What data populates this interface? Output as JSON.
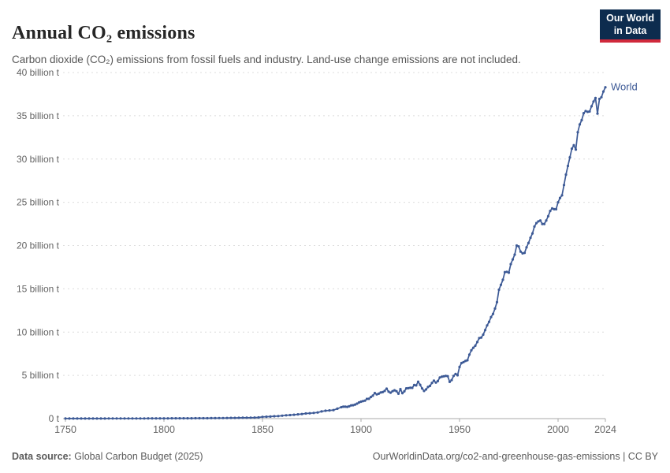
{
  "header": {
    "title": "Annual CO₂ emissions",
    "subtitle": "Carbon dioxide (CO₂) emissions from fossil fuels and industry. Land-use change emissions are not included.",
    "logo": {
      "line1": "Our World",
      "line2": "in Data"
    }
  },
  "colors": {
    "series_blue": "#3d5a96",
    "grid": "#dcdcdc",
    "axis": "#a8a8a8",
    "tick_text": "#636363",
    "logo_bg": "#0d2c4e",
    "logo_accent": "#d0293c",
    "title_text": "#262626",
    "subtitle_text": "#565656",
    "footer_text": "#5b5b5b"
  },
  "footer": {
    "data_source_label": "Data source:",
    "data_source_value": " Global Carbon Budget (2025)",
    "url": "OurWorldinData.org/co2-and-greenhouse-gas-emissions",
    "separator": " | ",
    "license": "CC BY"
  },
  "chart_data": {
    "type": "line",
    "title": "Annual CO₂ emissions",
    "xlabel": "",
    "ylabel": "",
    "grid": "dashed-horizontal",
    "legend_position": "end-of-line-label",
    "x_axis": {
      "range": [
        1750,
        2024
      ],
      "ticks": [
        1750,
        1800,
        1850,
        1900,
        1950,
        2000,
        2024
      ],
      "tick_labels": [
        "1750",
        "1800",
        "1850",
        "1900",
        "1950",
        "2000",
        "2024"
      ]
    },
    "y_axis": {
      "range": [
        0,
        40
      ],
      "unit": "billion tonnes",
      "ticks": [
        0,
        5,
        10,
        15,
        20,
        25,
        30,
        35,
        40
      ],
      "tick_labels": [
        "0 t",
        "5 billion t",
        "10 billion t",
        "15 billion t",
        "20 billion t",
        "25 billion t",
        "30 billion t",
        "35 billion t",
        "40 billion t"
      ]
    },
    "series": [
      {
        "name": "World",
        "color": "#3d5a96",
        "points": [
          [
            1750,
            0.009
          ],
          [
            1752,
            0.009
          ],
          [
            1754,
            0.01
          ],
          [
            1756,
            0.01
          ],
          [
            1758,
            0.01
          ],
          [
            1760,
            0.011
          ],
          [
            1762,
            0.011
          ],
          [
            1764,
            0.012
          ],
          [
            1766,
            0.012
          ],
          [
            1768,
            0.013
          ],
          [
            1770,
            0.013
          ],
          [
            1772,
            0.014
          ],
          [
            1774,
            0.015
          ],
          [
            1776,
            0.015
          ],
          [
            1778,
            0.016
          ],
          [
            1780,
            0.017
          ],
          [
            1782,
            0.018
          ],
          [
            1784,
            0.019
          ],
          [
            1786,
            0.02
          ],
          [
            1788,
            0.021
          ],
          [
            1790,
            0.022
          ],
          [
            1792,
            0.023
          ],
          [
            1794,
            0.025
          ],
          [
            1796,
            0.026
          ],
          [
            1798,
            0.028
          ],
          [
            1800,
            0.03
          ],
          [
            1802,
            0.031
          ],
          [
            1804,
            0.032
          ],
          [
            1806,
            0.033
          ],
          [
            1808,
            0.034
          ],
          [
            1810,
            0.035
          ],
          [
            1812,
            0.038
          ],
          [
            1814,
            0.04
          ],
          [
            1816,
            0.042
          ],
          [
            1818,
            0.044
          ],
          [
            1820,
            0.046
          ],
          [
            1822,
            0.05
          ],
          [
            1824,
            0.054
          ],
          [
            1826,
            0.058
          ],
          [
            1828,
            0.062
          ],
          [
            1830,
            0.066
          ],
          [
            1832,
            0.072
          ],
          [
            1834,
            0.078
          ],
          [
            1836,
            0.085
          ],
          [
            1838,
            0.09
          ],
          [
            1840,
            0.096
          ],
          [
            1842,
            0.104
          ],
          [
            1844,
            0.112
          ],
          [
            1846,
            0.122
          ],
          [
            1848,
            0.135
          ],
          [
            1850,
            0.197
          ],
          [
            1852,
            0.22
          ],
          [
            1854,
            0.24
          ],
          [
            1856,
            0.27
          ],
          [
            1858,
            0.29
          ],
          [
            1860,
            0.34
          ],
          [
            1862,
            0.38
          ],
          [
            1864,
            0.41
          ],
          [
            1866,
            0.45
          ],
          [
            1868,
            0.49
          ],
          [
            1870,
            0.53
          ],
          [
            1872,
            0.59
          ],
          [
            1874,
            0.62
          ],
          [
            1876,
            0.66
          ],
          [
            1878,
            0.71
          ],
          [
            1880,
            0.83
          ],
          [
            1882,
            0.91
          ],
          [
            1884,
            0.95
          ],
          [
            1886,
            0.98
          ],
          [
            1888,
            1.15
          ],
          [
            1890,
            1.32
          ],
          [
            1891,
            1.38
          ],
          [
            1892,
            1.38
          ],
          [
            1893,
            1.36
          ],
          [
            1894,
            1.42
          ],
          [
            1895,
            1.53
          ],
          [
            1896,
            1.55
          ],
          [
            1897,
            1.62
          ],
          [
            1898,
            1.73
          ],
          [
            1899,
            1.87
          ],
          [
            1900,
            1.96
          ],
          [
            1901,
            2.02
          ],
          [
            1902,
            2.08
          ],
          [
            1903,
            2.28
          ],
          [
            1904,
            2.29
          ],
          [
            1905,
            2.5
          ],
          [
            1906,
            2.65
          ],
          [
            1907,
            2.95
          ],
          [
            1908,
            2.8
          ],
          [
            1909,
            2.88
          ],
          [
            1910,
            3.02
          ],
          [
            1911,
            3.06
          ],
          [
            1912,
            3.2
          ],
          [
            1913,
            3.46
          ],
          [
            1914,
            3.12
          ],
          [
            1915,
            3.0
          ],
          [
            1916,
            3.17
          ],
          [
            1917,
            3.27
          ],
          [
            1918,
            3.17
          ],
          [
            1919,
            2.88
          ],
          [
            1920,
            3.41
          ],
          [
            1921,
            2.93
          ],
          [
            1922,
            3.15
          ],
          [
            1923,
            3.5
          ],
          [
            1924,
            3.52
          ],
          [
            1925,
            3.56
          ],
          [
            1926,
            3.55
          ],
          [
            1927,
            3.88
          ],
          [
            1928,
            3.84
          ],
          [
            1929,
            4.26
          ],
          [
            1930,
            3.91
          ],
          [
            1931,
            3.49
          ],
          [
            1932,
            3.2
          ],
          [
            1933,
            3.37
          ],
          [
            1934,
            3.65
          ],
          [
            1935,
            3.78
          ],
          [
            1936,
            4.13
          ],
          [
            1937,
            4.38
          ],
          [
            1938,
            4.16
          ],
          [
            1939,
            4.34
          ],
          [
            1940,
            4.76
          ],
          [
            1941,
            4.84
          ],
          [
            1942,
            4.88
          ],
          [
            1943,
            4.94
          ],
          [
            1944,
            4.9
          ],
          [
            1945,
            4.25
          ],
          [
            1946,
            4.46
          ],
          [
            1947,
            4.94
          ],
          [
            1948,
            5.17
          ],
          [
            1949,
            5.01
          ],
          [
            1950,
            5.97
          ],
          [
            1951,
            6.42
          ],
          [
            1952,
            6.52
          ],
          [
            1953,
            6.66
          ],
          [
            1954,
            6.74
          ],
          [
            1955,
            7.4
          ],
          [
            1956,
            7.89
          ],
          [
            1957,
            8.19
          ],
          [
            1958,
            8.43
          ],
          [
            1959,
            8.85
          ],
          [
            1960,
            9.3
          ],
          [
            1961,
            9.37
          ],
          [
            1962,
            9.7
          ],
          [
            1963,
            10.23
          ],
          [
            1964,
            10.77
          ],
          [
            1965,
            11.19
          ],
          [
            1966,
            11.74
          ],
          [
            1967,
            12.1
          ],
          [
            1968,
            12.72
          ],
          [
            1969,
            13.47
          ],
          [
            1970,
            14.9
          ],
          [
            1971,
            15.46
          ],
          [
            1972,
            16.05
          ],
          [
            1973,
            16.93
          ],
          [
            1974,
            16.97
          ],
          [
            1975,
            16.87
          ],
          [
            1976,
            17.86
          ],
          [
            1977,
            18.4
          ],
          [
            1978,
            18.95
          ],
          [
            1979,
            20.0
          ],
          [
            1980,
            19.9
          ],
          [
            1981,
            19.3
          ],
          [
            1982,
            19.1
          ],
          [
            1983,
            19.15
          ],
          [
            1984,
            19.8
          ],
          [
            1985,
            20.3
          ],
          [
            1986,
            20.9
          ],
          [
            1987,
            21.4
          ],
          [
            1988,
            22.2
          ],
          [
            1989,
            22.6
          ],
          [
            1990,
            22.8
          ],
          [
            1991,
            22.9
          ],
          [
            1992,
            22.5
          ],
          [
            1993,
            22.5
          ],
          [
            1994,
            22.9
          ],
          [
            1995,
            23.4
          ],
          [
            1996,
            24.0
          ],
          [
            1997,
            24.3
          ],
          [
            1998,
            24.2
          ],
          [
            1999,
            24.2
          ],
          [
            2000,
            25.0
          ],
          [
            2001,
            25.5
          ],
          [
            2002,
            25.8
          ],
          [
            2003,
            27.0
          ],
          [
            2004,
            28.2
          ],
          [
            2005,
            29.2
          ],
          [
            2006,
            30.2
          ],
          [
            2007,
            31.2
          ],
          [
            2008,
            31.6
          ],
          [
            2009,
            31.1
          ],
          [
            2010,
            33.1
          ],
          [
            2011,
            34.0
          ],
          [
            2012,
            34.5
          ],
          [
            2013,
            35.3
          ],
          [
            2014,
            35.55
          ],
          [
            2015,
            35.45
          ],
          [
            2016,
            35.5
          ],
          [
            2017,
            36.1
          ],
          [
            2018,
            36.65
          ],
          [
            2019,
            37.05
          ],
          [
            2020,
            35.25
          ],
          [
            2021,
            36.95
          ],
          [
            2022,
            37.15
          ],
          [
            2023,
            37.8
          ],
          [
            2024,
            38.3
          ]
        ]
      }
    ]
  }
}
